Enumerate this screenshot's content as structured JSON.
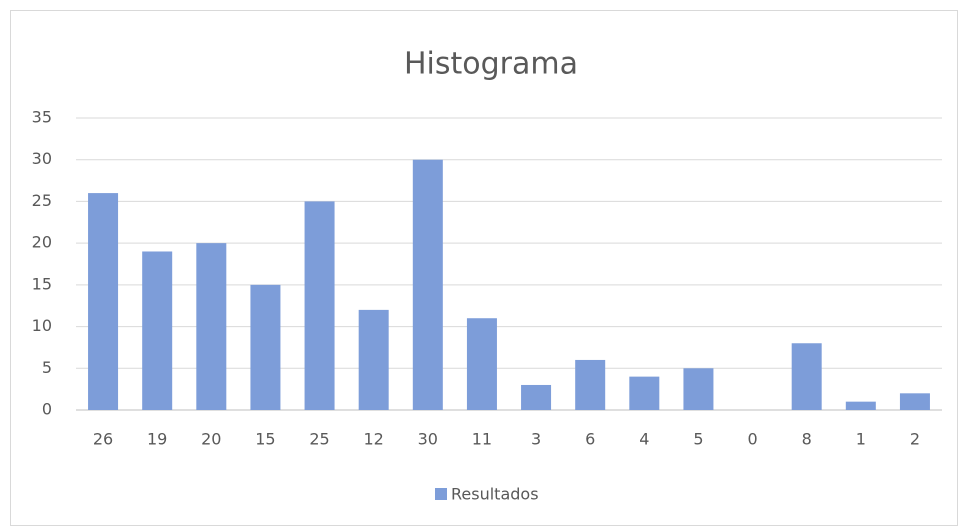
{
  "chart_data": {
    "type": "bar",
    "title": "Histograma",
    "categories": [
      "26",
      "19",
      "20",
      "15",
      "25",
      "12",
      "30",
      "11",
      "3",
      "6",
      "4",
      "5",
      "0",
      "8",
      "1",
      "2"
    ],
    "series": [
      {
        "name": "Resultados",
        "color": "#7d9dd9",
        "values": [
          26,
          19,
          20,
          15,
          25,
          12,
          30,
          11,
          3,
          6,
          4,
          5,
          0,
          8,
          1,
          2
        ]
      }
    ],
    "ylim": [
      0,
      35
    ],
    "yticks": [
      0,
      5,
      10,
      15,
      20,
      25,
      30,
      35
    ],
    "grid": true,
    "legend": "bottom"
  }
}
